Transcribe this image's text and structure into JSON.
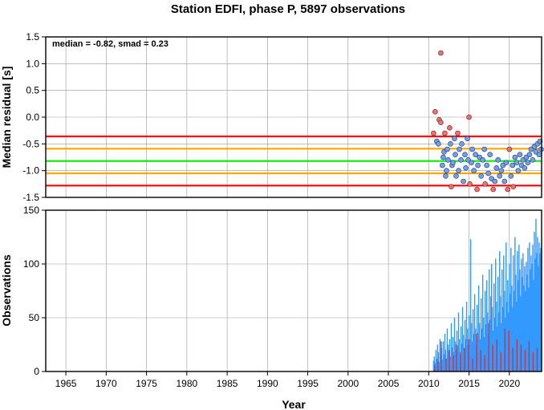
{
  "title": "Station EDFI, phase P, 5897 observations",
  "chart_data": [
    {
      "type": "scatter",
      "ylabel": "Median residual [s]",
      "annotation": "median = -0.82, smad = 0.23",
      "xlim": [
        1962.5,
        2024.0
      ],
      "ylim": [
        -1.5,
        1.5
      ],
      "yticks": [
        "-1.5",
        "-1.0",
        "-0.5",
        "0.0",
        "0.5",
        "1.0",
        "1.5"
      ],
      "grid": true,
      "reference_lines": [
        {
          "y": -0.82,
          "color": "#00ee00"
        },
        {
          "y": -0.59,
          "color": "#ffa500"
        },
        {
          "y": -1.05,
          "color": "#ffa500"
        },
        {
          "y": -0.36,
          "color": "#ff0000"
        },
        {
          "y": -1.28,
          "color": "#ff0000"
        }
      ],
      "colors": {
        "inlier": "#6aa0ff",
        "outlier": "#ff6a6a"
      },
      "points": [
        [
          2010.6,
          -0.3,
          1
        ],
        [
          2010.8,
          0.1,
          1
        ],
        [
          2011.0,
          -0.45,
          0
        ],
        [
          2011.2,
          -0.5,
          0
        ],
        [
          2011.3,
          -0.05,
          1
        ],
        [
          2011.5,
          -0.1,
          1
        ],
        [
          2011.5,
          1.2,
          1
        ],
        [
          2011.7,
          -0.9,
          0
        ],
        [
          2011.8,
          -0.75,
          0
        ],
        [
          2011.9,
          -0.65,
          0
        ],
        [
          2012.0,
          -0.3,
          1
        ],
        [
          2012.1,
          -1.1,
          0
        ],
        [
          2012.2,
          -1.0,
          0
        ],
        [
          2012.3,
          -0.6,
          0
        ],
        [
          2012.4,
          -0.8,
          0
        ],
        [
          2012.6,
          -0.2,
          1
        ],
        [
          2012.7,
          -0.5,
          0
        ],
        [
          2012.8,
          -1.3,
          1
        ],
        [
          2012.9,
          -0.9,
          0
        ],
        [
          2013.0,
          -0.85,
          0
        ],
        [
          2013.2,
          -0.4,
          0
        ],
        [
          2013.3,
          -0.7,
          0
        ],
        [
          2013.4,
          -1.1,
          0
        ],
        [
          2013.6,
          -0.3,
          1
        ],
        [
          2013.7,
          -1.0,
          0
        ],
        [
          2013.8,
          -0.6,
          0
        ],
        [
          2014.0,
          -0.8,
          0
        ],
        [
          2014.1,
          -0.5,
          0
        ],
        [
          2014.3,
          -1.2,
          0
        ],
        [
          2014.5,
          -0.7,
          0
        ],
        [
          2014.6,
          -0.95,
          0
        ],
        [
          2014.8,
          -0.4,
          0
        ],
        [
          2014.9,
          -0.8,
          0
        ],
        [
          2015.0,
          0.0,
          1
        ],
        [
          2015.1,
          -1.25,
          1
        ],
        [
          2015.3,
          -0.85,
          0
        ],
        [
          2015.4,
          -0.6,
          0
        ],
        [
          2015.6,
          -1.0,
          0
        ],
        [
          2015.8,
          -0.7,
          0
        ],
        [
          2016.0,
          -1.35,
          1
        ],
        [
          2016.1,
          -0.9,
          0
        ],
        [
          2016.3,
          -0.75,
          0
        ],
        [
          2016.5,
          -1.1,
          0
        ],
        [
          2016.7,
          -0.8,
          0
        ],
        [
          2016.9,
          -0.6,
          0
        ],
        [
          2017.0,
          -1.25,
          1
        ],
        [
          2017.2,
          -0.9,
          0
        ],
        [
          2017.4,
          -1.05,
          0
        ],
        [
          2017.6,
          -0.7,
          0
        ],
        [
          2017.8,
          -1.15,
          0
        ],
        [
          2018.0,
          -1.35,
          1
        ],
        [
          2018.2,
          -1.2,
          0
        ],
        [
          2018.4,
          -0.95,
          0
        ],
        [
          2018.6,
          -0.8,
          0
        ],
        [
          2018.8,
          -1.1,
          0
        ],
        [
          2019.0,
          -1.0,
          0
        ],
        [
          2019.2,
          -0.9,
          0
        ],
        [
          2019.4,
          -1.2,
          0
        ],
        [
          2019.6,
          -0.85,
          0
        ],
        [
          2019.8,
          -1.35,
          1
        ],
        [
          2020.0,
          -0.6,
          1
        ],
        [
          2020.2,
          -1.1,
          0
        ],
        [
          2020.4,
          -0.9,
          0
        ],
        [
          2020.5,
          -1.3,
          1
        ],
        [
          2020.7,
          -0.75,
          0
        ],
        [
          2020.9,
          -0.85,
          0
        ],
        [
          2021.1,
          -1.0,
          0
        ],
        [
          2021.3,
          -0.7,
          0
        ],
        [
          2021.5,
          -0.9,
          0
        ],
        [
          2021.7,
          -0.8,
          0
        ],
        [
          2021.9,
          -0.95,
          0
        ],
        [
          2022.1,
          -0.75,
          0
        ],
        [
          2022.3,
          -0.85,
          0
        ],
        [
          2022.5,
          -0.7,
          0
        ],
        [
          2022.7,
          -0.6,
          0
        ],
        [
          2022.9,
          -0.8,
          0
        ],
        [
          2023.1,
          -0.55,
          0
        ],
        [
          2023.3,
          -0.65,
          0
        ],
        [
          2023.5,
          -0.5,
          0
        ],
        [
          2023.7,
          -0.7,
          0
        ],
        [
          2023.8,
          -0.45,
          0
        ],
        [
          2023.95,
          -0.6,
          0
        ]
      ]
    },
    {
      "type": "bar",
      "xlabel": "Year",
      "ylabel": "Observations",
      "xlim": [
        1962.5,
        2024.0
      ],
      "ylim": [
        0,
        150
      ],
      "xticks": [
        "1965",
        "1970",
        "1975",
        "1980",
        "1985",
        "1990",
        "1995",
        "2000",
        "2005",
        "2010",
        "2015",
        "2020"
      ],
      "yticks": [
        "0",
        "50",
        "100",
        "150"
      ],
      "grid": true,
      "series": [
        {
          "color": "#3399ff",
          "x": [
            2010.6,
            2010.7,
            2010.8,
            2010.9,
            2011.0,
            2011.1,
            2011.2,
            2011.3,
            2011.4,
            2011.5,
            2011.6,
            2011.7,
            2011.8,
            2011.9,
            2012.0,
            2012.1,
            2012.2,
            2012.3,
            2012.4,
            2012.5,
            2012.6,
            2012.7,
            2012.8,
            2012.9,
            2013.0,
            2013.1,
            2013.2,
            2013.3,
            2013.4,
            2013.5,
            2013.6,
            2013.7,
            2013.8,
            2013.9,
            2014.0,
            2014.1,
            2014.2,
            2014.3,
            2014.4,
            2014.5,
            2014.6,
            2014.7,
            2014.8,
            2014.9,
            2015.0,
            2015.1,
            2015.2,
            2015.3,
            2015.4,
            2015.5,
            2015.6,
            2015.7,
            2015.8,
            2015.9,
            2016.0,
            2016.1,
            2016.2,
            2016.3,
            2016.4,
            2016.5,
            2016.6,
            2016.7,
            2016.8,
            2016.9,
            2017.0,
            2017.1,
            2017.2,
            2017.3,
            2017.4,
            2017.5,
            2017.6,
            2017.7,
            2017.8,
            2017.9,
            2018.0,
            2018.1,
            2018.2,
            2018.3,
            2018.4,
            2018.5,
            2018.6,
            2018.7,
            2018.8,
            2018.9,
            2019.0,
            2019.1,
            2019.2,
            2019.3,
            2019.4,
            2019.5,
            2019.6,
            2019.7,
            2019.8,
            2019.9,
            2020.0,
            2020.1,
            2020.2,
            2020.3,
            2020.4,
            2020.5,
            2020.6,
            2020.7,
            2020.8,
            2020.9,
            2021.0,
            2021.1,
            2021.2,
            2021.3,
            2021.4,
            2021.5,
            2021.6,
            2021.7,
            2021.8,
            2021.9,
            2022.0,
            2022.1,
            2022.2,
            2022.3,
            2022.4,
            2022.5,
            2022.6,
            2022.7,
            2022.8,
            2022.9,
            2023.0,
            2023.1,
            2023.2,
            2023.3,
            2023.4,
            2023.5,
            2023.6,
            2023.7,
            2023.8,
            2023.9
          ],
          "values": [
            10,
            14,
            8,
            20,
            12,
            25,
            18,
            9,
            30,
            15,
            22,
            11,
            28,
            16,
            35,
            20,
            12,
            40,
            25,
            18,
            30,
            14,
            45,
            22,
            32,
            18,
            50,
            28,
            20,
            38,
            24,
            55,
            30,
            16,
            42,
            26,
            60,
            34,
            22,
            48,
            30,
            65,
            40,
            25,
            52,
            30,
            123,
            45,
            28,
            58,
            35,
            72,
            40,
            25,
            62,
            36,
            80,
            45,
            30,
            68,
            40,
            90,
            50,
            32,
            75,
            44,
            85,
            55,
            35,
            95,
            48,
            70,
            100,
            60,
            38,
            82,
            50,
            105,
            65,
            42,
            88,
            55,
            112,
            70,
            45,
            95,
            60,
            108,
            75,
            50,
            120,
            65,
            85,
            55,
            100,
            72,
            115,
            80,
            60,
            108,
            75,
            125,
            90,
            65,
            112,
            85,
            118,
            95,
            70,
            105,
            88,
            110,
            80,
            98,
            75,
            102,
            90,
            115,
            78,
            120,
            95,
            108,
            100,
            118,
            85,
            130,
            105,
            142,
            110,
            125,
            98,
            120,
            110,
            115
          ]
        },
        {
          "color": "#cc3344",
          "x": [
            2010.75,
            2011.15,
            2011.55,
            2012.15,
            2012.55,
            2013.05,
            2013.45,
            2013.95,
            2014.45,
            2014.95,
            2015.45,
            2015.95,
            2016.45,
            2016.95,
            2017.45,
            2017.95,
            2018.45,
            2018.95,
            2019.45,
            2019.95,
            2020.45,
            2020.95,
            2021.45,
            2021.95,
            2022.45,
            2022.95,
            2023.45
          ],
          "values": [
            6,
            10,
            28,
            12,
            20,
            15,
            25,
            18,
            22,
            30,
            12,
            35,
            20,
            15,
            45,
            25,
            30,
            18,
            40,
            38,
            22,
            30,
            25,
            20,
            28,
            18,
            22
          ]
        }
      ]
    }
  ]
}
